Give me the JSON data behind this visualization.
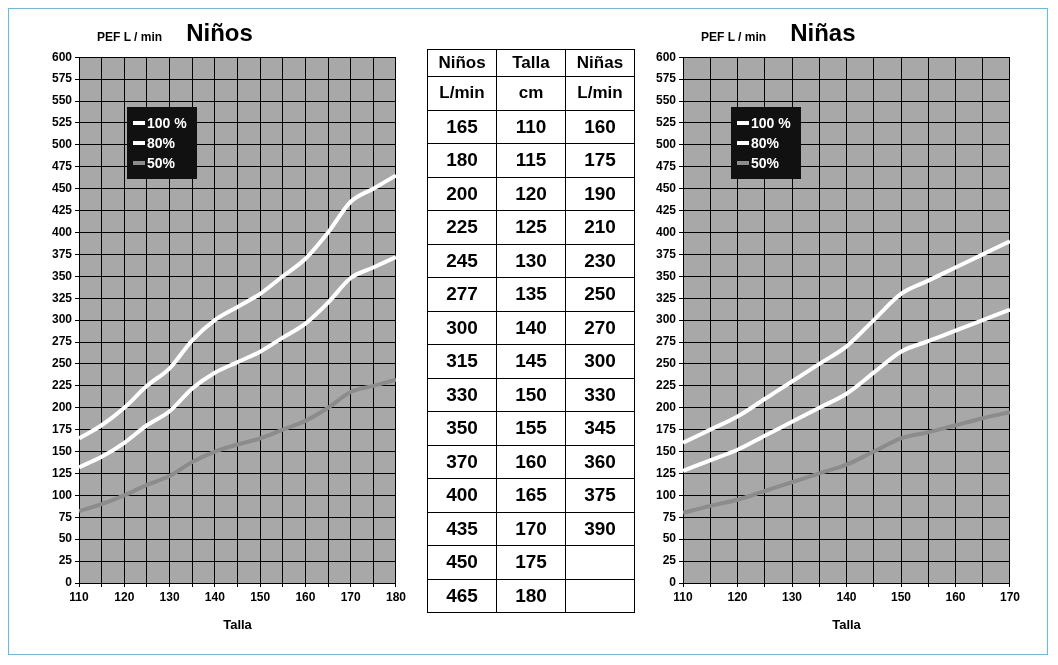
{
  "chart_data": [
    {
      "type": "line",
      "title": "Niños",
      "ylabel": "PEF L / min",
      "xlabel": "Talla",
      "x": [
        110,
        115,
        120,
        125,
        130,
        135,
        140,
        145,
        150,
        155,
        160,
        165,
        170,
        175,
        180
      ],
      "xlim": [
        110,
        180
      ],
      "xticks": [
        110,
        {
          "value": 115,
          "label": null
        },
        120,
        {
          "value": 125,
          "label": null
        },
        130,
        {
          "value": 135,
          "label": null
        },
        140,
        {
          "value": 145,
          "label": null
        },
        150,
        {
          "value": 155,
          "label": null
        },
        160,
        {
          "value": 165,
          "label": null
        },
        170,
        {
          "value": 175,
          "label": null
        },
        180
      ],
      "ylim": [
        0,
        600
      ],
      "yticks": [
        0,
        25,
        50,
        75,
        100,
        125,
        150,
        175,
        200,
        225,
        250,
        275,
        300,
        325,
        350,
        375,
        400,
        425,
        450,
        475,
        500,
        525,
        550,
        575,
        600
      ],
      "grid": true,
      "legend": "top left",
      "series": [
        {
          "name": "100 %",
          "color": "#ffffff",
          "values": [
            165,
            180,
            200,
            225,
            245,
            277,
            300,
            315,
            330,
            350,
            370,
            400,
            435,
            450,
            465
          ]
        },
        {
          "name": "80%",
          "color": "#ffffff",
          "values": [
            132,
            144,
            160,
            180,
            196,
            222,
            240,
            252,
            264,
            280,
            296,
            320,
            348,
            360,
            372
          ]
        },
        {
          "name": "50%",
          "color": "#8c8c8c",
          "values": [
            82,
            90,
            100,
            112,
            122,
            138,
            150,
            158,
            165,
            175,
            185,
            200,
            218,
            225,
            232
          ]
        }
      ]
    },
    {
      "type": "heatmap",
      "categories": [
        "Niños",
        "Niñas"
      ],
      "ylabel": "Talla",
      "annotations": [
        "L/min",
        "cm",
        "L/min"
      ],
      "data_labels": true,
      "y_categories": [
        "110",
        "115",
        "120",
        "125",
        "130",
        "135",
        "140",
        "145",
        "150",
        "155",
        "160",
        "165",
        "170",
        "175",
        "180"
      ],
      "cells": [
        [
          165,
          160
        ],
        [
          180,
          175
        ],
        [
          200,
          190
        ],
        [
          225,
          210
        ],
        [
          245,
          230
        ],
        [
          277,
          250
        ],
        [
          300,
          270
        ],
        [
          315,
          300
        ],
        [
          330,
          330
        ],
        [
          350,
          345
        ],
        [
          370,
          360
        ],
        [
          400,
          375
        ],
        [
          435,
          390
        ],
        [
          450,
          null
        ],
        [
          465,
          null
        ]
      ]
    },
    {
      "type": "line",
      "title": "Niñas",
      "ylabel": "PEF L / min",
      "xlabel": "Talla",
      "x": [
        110,
        115,
        120,
        125,
        130,
        135,
        140,
        145,
        150,
        155,
        160,
        165,
        170
      ],
      "xlim": [
        110,
        170
      ],
      "xticks": [
        110,
        {
          "value": 115,
          "label": null
        },
        120,
        {
          "value": 125,
          "label": null
        },
        130,
        {
          "value": 135,
          "label": null
        },
        140,
        {
          "value": 145,
          "label": null
        },
        150,
        {
          "value": 155,
          "label": null
        },
        160,
        {
          "value": 165,
          "label": null
        },
        170
      ],
      "ylim": [
        0,
        600
      ],
      "yticks": [
        0,
        25,
        50,
        75,
        100,
        125,
        150,
        175,
        200,
        225,
        250,
        275,
        300,
        325,
        350,
        375,
        400,
        425,
        450,
        475,
        500,
        525,
        550,
        575,
        600
      ],
      "grid": true,
      "legend": "top left",
      "series": [
        {
          "name": "100 %",
          "color": "#ffffff",
          "values": [
            160,
            175,
            190,
            210,
            230,
            250,
            270,
            300,
            330,
            345,
            360,
            375,
            390
          ]
        },
        {
          "name": "80%",
          "color": "#ffffff",
          "values": [
            128,
            140,
            152,
            168,
            184,
            200,
            216,
            240,
            264,
            276,
            288,
            300,
            312
          ]
        },
        {
          "name": "50%",
          "color": "#8c8c8c",
          "values": [
            80,
            88,
            95,
            105,
            115,
            125,
            135,
            150,
            165,
            172,
            180,
            188,
            195
          ]
        }
      ]
    }
  ]
}
